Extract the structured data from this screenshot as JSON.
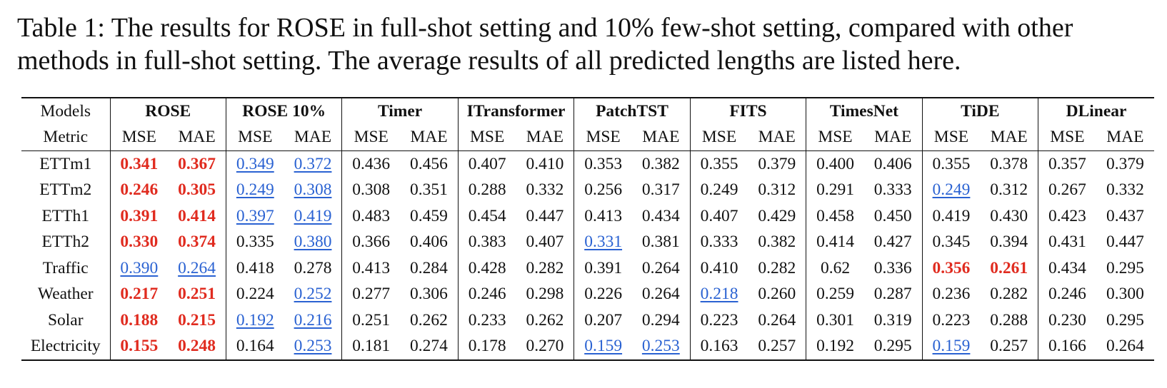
{
  "caption": "Table 1: The results for ROSE in full-shot setting and 10% few-shot setting, compared with other methods in full-shot setting. The average results of all predicted lengths are listed here.",
  "table": {
    "models_label": "Models",
    "metric_label": "Metric",
    "models": [
      "ROSE",
      "ROSE 10%",
      "Timer",
      "ITransformer",
      "PatchTST",
      "FITS",
      "TimesNet",
      "TiDE",
      "DLinear"
    ],
    "metrics": [
      "MSE",
      "MAE"
    ],
    "rows": [
      {
        "dataset": "ETTm1",
        "cells": [
          {
            "v": "0.341",
            "s": "best"
          },
          {
            "v": "0.367",
            "s": "best"
          },
          {
            "v": "0.349",
            "s": "second"
          },
          {
            "v": "0.372",
            "s": "second"
          },
          {
            "v": "0.436"
          },
          {
            "v": "0.456"
          },
          {
            "v": "0.407"
          },
          {
            "v": "0.410"
          },
          {
            "v": "0.353"
          },
          {
            "v": "0.382"
          },
          {
            "v": "0.355"
          },
          {
            "v": "0.379"
          },
          {
            "v": "0.400"
          },
          {
            "v": "0.406"
          },
          {
            "v": "0.355"
          },
          {
            "v": "0.378"
          },
          {
            "v": "0.357"
          },
          {
            "v": "0.379"
          }
        ]
      },
      {
        "dataset": "ETTm2",
        "cells": [
          {
            "v": "0.246",
            "s": "best"
          },
          {
            "v": "0.305",
            "s": "best"
          },
          {
            "v": "0.249",
            "s": "second"
          },
          {
            "v": "0.308",
            "s": "second"
          },
          {
            "v": "0.308"
          },
          {
            "v": "0.351"
          },
          {
            "v": "0.288"
          },
          {
            "v": "0.332"
          },
          {
            "v": "0.256"
          },
          {
            "v": "0.317"
          },
          {
            "v": "0.249"
          },
          {
            "v": "0.312"
          },
          {
            "v": "0.291"
          },
          {
            "v": "0.333"
          },
          {
            "v": "0.249",
            "s": "second"
          },
          {
            "v": "0.312"
          },
          {
            "v": "0.267"
          },
          {
            "v": "0.332"
          }
        ]
      },
      {
        "dataset": "ETTh1",
        "cells": [
          {
            "v": "0.391",
            "s": "best"
          },
          {
            "v": "0.414",
            "s": "best"
          },
          {
            "v": "0.397",
            "s": "second"
          },
          {
            "v": "0.419",
            "s": "second"
          },
          {
            "v": "0.483"
          },
          {
            "v": "0.459"
          },
          {
            "v": "0.454"
          },
          {
            "v": "0.447"
          },
          {
            "v": "0.413"
          },
          {
            "v": "0.434"
          },
          {
            "v": "0.407"
          },
          {
            "v": "0.429"
          },
          {
            "v": "0.458"
          },
          {
            "v": "0.450"
          },
          {
            "v": "0.419"
          },
          {
            "v": "0.430"
          },
          {
            "v": "0.423"
          },
          {
            "v": "0.437"
          }
        ]
      },
      {
        "dataset": "ETTh2",
        "cells": [
          {
            "v": "0.330",
            "s": "best"
          },
          {
            "v": "0.374",
            "s": "best"
          },
          {
            "v": "0.335"
          },
          {
            "v": "0.380",
            "s": "second"
          },
          {
            "v": "0.366"
          },
          {
            "v": "0.406"
          },
          {
            "v": "0.383"
          },
          {
            "v": "0.407"
          },
          {
            "v": "0.331",
            "s": "second"
          },
          {
            "v": "0.381"
          },
          {
            "v": "0.333"
          },
          {
            "v": "0.382"
          },
          {
            "v": "0.414"
          },
          {
            "v": "0.427"
          },
          {
            "v": "0.345"
          },
          {
            "v": "0.394"
          },
          {
            "v": "0.431"
          },
          {
            "v": "0.447"
          }
        ]
      },
      {
        "dataset": "Traffic",
        "cells": [
          {
            "v": "0.390",
            "s": "second"
          },
          {
            "v": "0.264",
            "s": "second"
          },
          {
            "v": "0.418"
          },
          {
            "v": "0.278"
          },
          {
            "v": "0.413"
          },
          {
            "v": "0.284"
          },
          {
            "v": "0.428"
          },
          {
            "v": "0.282"
          },
          {
            "v": "0.391"
          },
          {
            "v": "0.264"
          },
          {
            "v": "0.410"
          },
          {
            "v": "0.282"
          },
          {
            "v": "0.62"
          },
          {
            "v": "0.336"
          },
          {
            "v": "0.356",
            "s": "best"
          },
          {
            "v": "0.261",
            "s": "best"
          },
          {
            "v": "0.434"
          },
          {
            "v": "0.295"
          }
        ]
      },
      {
        "dataset": "Weather",
        "cells": [
          {
            "v": "0.217",
            "s": "best"
          },
          {
            "v": "0.251",
            "s": "best"
          },
          {
            "v": "0.224"
          },
          {
            "v": "0.252",
            "s": "second"
          },
          {
            "v": "0.277"
          },
          {
            "v": "0.306"
          },
          {
            "v": "0.246"
          },
          {
            "v": "0.298"
          },
          {
            "v": "0.226"
          },
          {
            "v": "0.264"
          },
          {
            "v": "0.218",
            "s": "second"
          },
          {
            "v": "0.260"
          },
          {
            "v": "0.259"
          },
          {
            "v": "0.287"
          },
          {
            "v": "0.236"
          },
          {
            "v": "0.282"
          },
          {
            "v": "0.246"
          },
          {
            "v": "0.300"
          }
        ]
      },
      {
        "dataset": "Solar",
        "cells": [
          {
            "v": "0.188",
            "s": "best"
          },
          {
            "v": "0.215",
            "s": "best"
          },
          {
            "v": "0.192",
            "s": "second"
          },
          {
            "v": "0.216",
            "s": "second"
          },
          {
            "v": "0.251"
          },
          {
            "v": "0.262"
          },
          {
            "v": "0.233"
          },
          {
            "v": "0.262"
          },
          {
            "v": "0.207"
          },
          {
            "v": "0.294"
          },
          {
            "v": "0.223"
          },
          {
            "v": "0.264"
          },
          {
            "v": "0.301"
          },
          {
            "v": "0.319"
          },
          {
            "v": "0.223"
          },
          {
            "v": "0.288"
          },
          {
            "v": "0.230"
          },
          {
            "v": "0.295"
          }
        ]
      },
      {
        "dataset": "Electricity",
        "cells": [
          {
            "v": "0.155",
            "s": "best"
          },
          {
            "v": "0.248",
            "s": "best"
          },
          {
            "v": "0.164"
          },
          {
            "v": "0.253",
            "s": "second"
          },
          {
            "v": "0.181"
          },
          {
            "v": "0.274"
          },
          {
            "v": "0.178"
          },
          {
            "v": "0.270"
          },
          {
            "v": "0.159",
            "s": "second"
          },
          {
            "v": "0.253",
            "s": "second"
          },
          {
            "v": "0.163"
          },
          {
            "v": "0.257"
          },
          {
            "v": "0.192"
          },
          {
            "v": "0.295"
          },
          {
            "v": "0.159",
            "s": "second"
          },
          {
            "v": "0.257"
          },
          {
            "v": "0.166"
          },
          {
            "v": "0.264"
          }
        ]
      }
    ]
  },
  "colors": {
    "best": "#e02b1f",
    "second": "#2a62d2",
    "text": "#111111"
  }
}
